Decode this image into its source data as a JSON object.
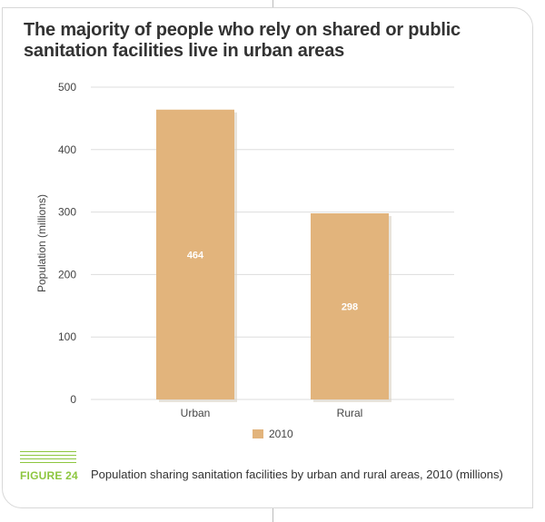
{
  "title": "The majority of people who rely on shared or public sanitation facilities live in urban areas",
  "figure_label": "FIGURE 24",
  "caption": "Population sharing sanitation facilities by urban and rural areas, 2010 (millions)",
  "colors": {
    "bar": "#e2b47c",
    "grid": "#dddddd",
    "figure": "#8dc63f",
    "text": "#444444"
  },
  "chart_data": {
    "type": "bar",
    "categories": [
      "Urban",
      "Rural"
    ],
    "series": [
      {
        "name": "2010",
        "values": [
          464,
          298
        ]
      }
    ],
    "data_labels": [
      "464",
      "298"
    ],
    "title": "The majority of people who rely on shared or public sanitation facilities live in urban areas",
    "xlabel": "",
    "ylabel": "Population (millions)",
    "ylim": [
      0,
      500
    ],
    "yticks": [
      0,
      100,
      200,
      300,
      400,
      500
    ],
    "grid": true,
    "legend": "bottom"
  }
}
